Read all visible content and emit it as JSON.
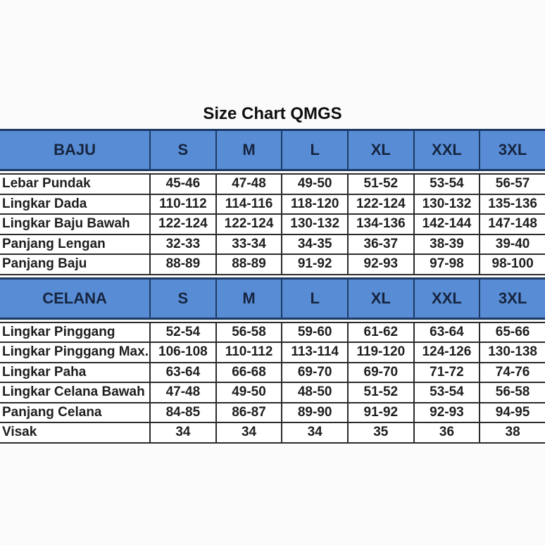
{
  "title": "Size Chart QMGS",
  "colors": {
    "header_background": "#588DD5",
    "header_border": "#1C3A63",
    "header_text": "#16243F",
    "cell_border": "#2B2B2B",
    "cell_text": "#1E1E1E",
    "page_background": "#FBFBFB"
  },
  "chart_data": [
    {
      "type": "table",
      "title": "Size Chart QMGS",
      "header": "BAJU",
      "columns": [
        "S",
        "M",
        "L",
        "XL",
        "XXL",
        "3XL"
      ],
      "rows": [
        {
          "label": "Lebar Pundak",
          "values": [
            "45-46",
            "47-48",
            "49-50",
            "51-52",
            "53-54",
            "56-57"
          ]
        },
        {
          "label": "Lingkar Dada",
          "values": [
            "110-112",
            "114-116",
            "118-120",
            "122-124",
            "130-132",
            "135-136"
          ]
        },
        {
          "label": "Lingkar Baju Bawah",
          "values": [
            "122-124",
            "122-124",
            "130-132",
            "134-136",
            "142-144",
            "147-148"
          ]
        },
        {
          "label": "Panjang Lengan",
          "values": [
            "32-33",
            "33-34",
            "34-35",
            "36-37",
            "38-39",
            "39-40"
          ]
        },
        {
          "label": "Panjang Baju",
          "values": [
            "88-89",
            "88-89",
            "91-92",
            "92-93",
            "97-98",
            "98-100"
          ]
        }
      ]
    },
    {
      "type": "table",
      "title": "Size Chart QMGS",
      "header": "CELANA",
      "columns": [
        "S",
        "M",
        "L",
        "XL",
        "XXL",
        "3XL"
      ],
      "rows": [
        {
          "label": "Lingkar Pinggang",
          "values": [
            "52-54",
            "56-58",
            "59-60",
            "61-62",
            "63-64",
            "65-66"
          ]
        },
        {
          "label": "Lingkar Pinggang Max.",
          "values": [
            "106-108",
            "110-112",
            "113-114",
            "119-120",
            "124-126",
            "130-138"
          ]
        },
        {
          "label": "Lingkar Paha",
          "values": [
            "63-64",
            "66-68",
            "69-70",
            "69-70",
            "71-72",
            "74-76"
          ]
        },
        {
          "label": "Lingkar Celana Bawah",
          "values": [
            "47-48",
            "49-50",
            "48-50",
            "51-52",
            "53-54",
            "56-58"
          ]
        },
        {
          "label": "Panjang Celana",
          "values": [
            "84-85",
            "86-87",
            "89-90",
            "91-92",
            "92-93",
            "94-95"
          ]
        },
        {
          "label": "Visak",
          "values": [
            "34",
            "34",
            "34",
            "35",
            "36",
            "38"
          ]
        }
      ]
    }
  ]
}
